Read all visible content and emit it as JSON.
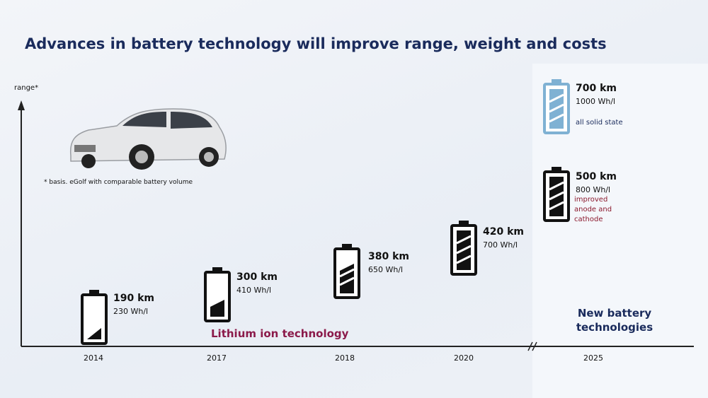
{
  "header": {
    "title": "Advances in battery technology will improve range, weight and costs"
  },
  "axis": {
    "label": "range*",
    "footnote": "* basis. eGolf with comparable battery volume"
  },
  "stages": [
    {
      "year": "2014",
      "range": "190 km",
      "density": "230 Wh/l"
    },
    {
      "year": "2017",
      "range": "300 km",
      "density": "410 Wh/l"
    },
    {
      "year": "2018",
      "range": "380 km",
      "density": "650 Wh/l"
    },
    {
      "year": "2020",
      "range": "420 km",
      "density": "700 Wh/l"
    }
  ],
  "future": {
    "year": "2025",
    "options": [
      {
        "range": "500 km",
        "density": "800 Wh/l",
        "note": "improved anode and cathode"
      },
      {
        "range": "700 km",
        "density": "1000 Wh/l",
        "note": "all solid state"
      }
    ]
  },
  "labels": {
    "current": "Lithium ion technology",
    "next": "New battery technologies"
  }
}
